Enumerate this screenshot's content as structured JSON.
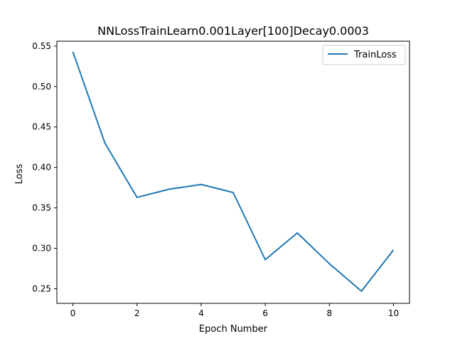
{
  "chart_data": {
    "type": "line",
    "title": "NNLossTrainLearn0.001Layer[100]Decay0.0003",
    "xlabel": "Epoch Number",
    "ylabel": "Loss",
    "xlim": [
      -0.5,
      10.5
    ],
    "ylim": [
      0.232,
      0.556
    ],
    "xticks": [
      0,
      2,
      4,
      6,
      8,
      10
    ],
    "yticks": [
      0.25,
      0.3,
      0.35,
      0.4,
      0.45,
      0.5,
      0.55
    ],
    "ytick_labels": [
      "0.25",
      "0.30",
      "0.35",
      "0.40",
      "0.45",
      "0.50",
      "0.55"
    ],
    "grid": false,
    "legend_position": "top-right",
    "series": [
      {
        "name": "TrainLoss",
        "color": "#1f77b4",
        "x": [
          0,
          1,
          2,
          3,
          4,
          5,
          6,
          7,
          8,
          9,
          10
        ],
        "y": [
          0.543,
          0.43,
          0.363,
          0.373,
          0.379,
          0.369,
          0.286,
          0.319,
          0.281,
          0.247,
          0.298
        ]
      }
    ]
  }
}
